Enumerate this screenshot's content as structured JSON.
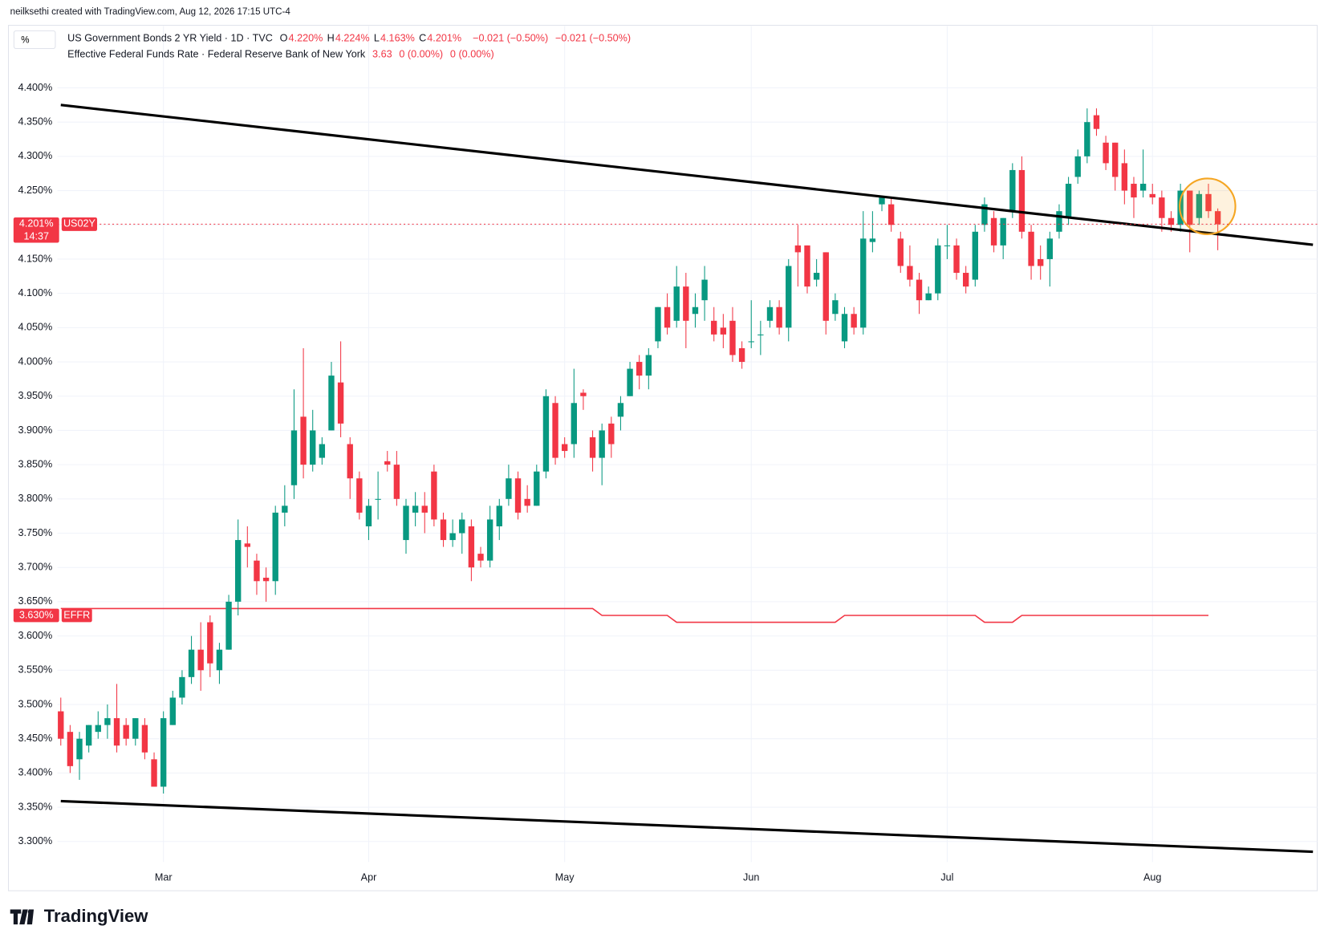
{
  "header": {
    "credit": "neilksethi created with TradingView.com, Aug 12, 2026 17:15 UTC-4"
  },
  "footer": {
    "brand": "TradingView"
  },
  "chart_data": {
    "type": "candlestick",
    "legend": {
      "button": "%",
      "series_name": "US Government Bonds 2 YR Yield · 1D · TVC",
      "ohlc": [
        {
          "key": "O",
          "value": "4.220%"
        },
        {
          "key": "H",
          "value": "4.224%"
        },
        {
          "key": "L",
          "value": "4.163%"
        },
        {
          "key": "C",
          "value": "4.201%"
        }
      ],
      "change": [
        "−0.021 (−0.50%)",
        "−0.021 (−0.50%)"
      ],
      "overlay_name": "Effective Federal Funds Rate · Federal Reserve Bank of New York",
      "overlay_values": [
        "3.63",
        "0 (0.00%)",
        "0 (0.00%)"
      ]
    },
    "categories": [
      null,
      null,
      null,
      null,
      null,
      null,
      null,
      null,
      null,
      null,
      null,
      "Mar",
      null,
      null,
      null,
      null,
      null,
      null,
      null,
      null,
      null,
      null,
      null,
      null,
      null,
      null,
      null,
      null,
      null,
      null,
      null,
      null,
      null,
      "Apr",
      null,
      null,
      null,
      null,
      null,
      null,
      null,
      null,
      null,
      null,
      null,
      null,
      null,
      null,
      null,
      null,
      null,
      null,
      null,
      null,
      "May",
      null,
      null,
      null,
      null,
      null,
      null,
      null,
      null,
      null,
      null,
      null,
      null,
      null,
      null,
      null,
      null,
      null,
      null,
      null,
      "Jun",
      null,
      null,
      null,
      null,
      null,
      null,
      null,
      null,
      null,
      null,
      null,
      null,
      null,
      null,
      null,
      null,
      null,
      null,
      null,
      null,
      "Jul",
      null,
      null,
      null,
      null,
      null,
      null,
      null,
      null,
      null,
      null,
      null,
      null,
      null,
      null,
      null,
      null,
      null,
      null,
      null,
      null,
      null,
      "Aug",
      null,
      null,
      null,
      null,
      null,
      null,
      null
    ],
    "open": [
      3.49,
      3.46,
      3.42,
      3.44,
      3.46,
      3.47,
      3.48,
      3.47,
      3.45,
      3.47,
      3.42,
      3.38,
      3.47,
      3.51,
      3.54,
      3.58,
      3.62,
      3.55,
      3.58,
      3.65,
      3.735,
      3.71,
      3.685,
      3.68,
      3.78,
      3.82,
      3.92,
      3.85,
      3.86,
      3.9,
      3.97,
      3.88,
      3.83,
      3.76,
      3.8,
      3.855,
      3.85,
      3.74,
      3.78,
      3.79,
      3.84,
      3.77,
      3.74,
      3.75,
      3.76,
      3.72,
      3.71,
      3.76,
      3.8,
      3.83,
      3.8,
      3.79,
      3.84,
      3.94,
      3.88,
      3.88,
      3.955,
      3.89,
      3.86,
      3.91,
      3.92,
      3.95,
      4.0,
      3.98,
      4.03,
      4.08,
      4.06,
      4.11,
      4.07,
      4.09,
      4.06,
      4.05,
      4.06,
      4.02,
      4.03,
      4.04,
      4.06,
      4.08,
      4.05,
      4.17,
      4.17,
      4.12,
      4.16,
      4.07,
      4.03,
      4.07,
      4.05,
      4.175,
      4.23,
      4.23,
      4.18,
      4.14,
      4.12,
      4.09,
      4.1,
      4.17,
      4.17,
      4.13,
      4.12,
      4.2,
      4.21,
      4.17,
      4.22,
      4.28,
      4.19,
      4.15,
      4.15,
      4.19,
      4.21,
      4.27,
      4.3,
      4.36,
      4.32,
      4.32,
      4.29,
      4.26,
      4.25,
      4.245,
      4.24,
      4.21,
      4.2,
      4.25,
      4.21,
      4.245,
      4.22
    ],
    "high": [
      3.51,
      3.47,
      3.46,
      3.47,
      3.49,
      3.5,
      3.53,
      3.48,
      3.48,
      3.48,
      3.43,
      3.49,
      3.52,
      3.55,
      3.6,
      3.62,
      3.63,
      3.59,
      3.66,
      3.77,
      3.76,
      3.72,
      3.7,
      3.79,
      3.82,
      3.96,
      4.02,
      3.93,
      3.89,
      4.0,
      4.03,
      3.89,
      3.84,
      3.8,
      3.84,
      3.87,
      3.87,
      3.8,
      3.81,
      3.81,
      3.85,
      3.78,
      3.77,
      3.78,
      3.77,
      3.73,
      3.79,
      3.8,
      3.85,
      3.84,
      3.82,
      3.85,
      3.96,
      3.95,
      3.89,
      3.99,
      3.96,
      3.9,
      3.91,
      3.92,
      3.95,
      4.0,
      4.01,
      4.02,
      4.08,
      4.1,
      4.14,
      4.13,
      4.1,
      4.14,
      4.08,
      4.07,
      4.08,
      4.03,
      4.09,
      4.06,
      4.09,
      4.09,
      4.15,
      4.2,
      4.17,
      4.15,
      4.16,
      4.1,
      4.08,
      4.08,
      4.22,
      4.22,
      4.24,
      4.24,
      4.19,
      4.17,
      4.13,
      4.11,
      4.18,
      4.2,
      4.18,
      4.14,
      4.2,
      4.24,
      4.22,
      4.21,
      4.29,
      4.3,
      4.2,
      4.17,
      4.19,
      4.23,
      4.27,
      4.31,
      4.37,
      4.37,
      4.33,
      4.32,
      4.31,
      4.27,
      4.31,
      4.26,
      4.25,
      4.22,
      4.26,
      4.25,
      4.25,
      4.26,
      4.224
    ],
    "low": [
      3.44,
      3.4,
      3.39,
      3.43,
      3.45,
      3.45,
      3.43,
      3.44,
      3.44,
      3.42,
      3.38,
      3.37,
      3.47,
      3.5,
      3.53,
      3.52,
      3.54,
      3.53,
      3.58,
      3.63,
      3.7,
      3.66,
      3.65,
      3.66,
      3.76,
      3.8,
      3.83,
      3.84,
      3.85,
      3.9,
      3.89,
      3.8,
      3.77,
      3.74,
      3.77,
      3.84,
      3.79,
      3.72,
      3.76,
      3.75,
      3.76,
      3.73,
      3.73,
      3.72,
      3.68,
      3.7,
      3.7,
      3.74,
      3.79,
      3.77,
      3.78,
      3.79,
      3.83,
      3.85,
      3.86,
      3.86,
      3.93,
      3.84,
      3.82,
      3.86,
      3.9,
      3.95,
      3.96,
      3.96,
      4.02,
      4.04,
      4.05,
      4.02,
      4.05,
      4.06,
      4.03,
      4.02,
      4.0,
      3.99,
      4.02,
      4.01,
      4.05,
      4.04,
      4.03,
      4.11,
      4.1,
      4.11,
      4.04,
      4.06,
      4.02,
      4.04,
      4.04,
      4.16,
      4.22,
      4.19,
      4.13,
      4.11,
      4.07,
      4.09,
      4.09,
      4.15,
      4.12,
      4.1,
      4.11,
      4.19,
      4.16,
      4.15,
      4.21,
      4.18,
      4.12,
      4.12,
      4.11,
      4.18,
      4.2,
      4.26,
      4.29,
      4.33,
      4.28,
      4.25,
      4.23,
      4.21,
      4.24,
      4.23,
      4.19,
      4.19,
      4.19,
      4.16,
      4.2,
      4.21,
      4.163
    ],
    "close": [
      3.45,
      3.41,
      3.45,
      3.47,
      3.47,
      3.48,
      3.44,
      3.45,
      3.48,
      3.43,
      3.38,
      3.48,
      3.51,
      3.54,
      3.58,
      3.55,
      3.56,
      3.58,
      3.65,
      3.74,
      3.73,
      3.68,
      3.68,
      3.78,
      3.79,
      3.9,
      3.85,
      3.9,
      3.88,
      3.98,
      3.91,
      3.83,
      3.78,
      3.79,
      3.8,
      3.85,
      3.8,
      3.79,
      3.79,
      3.78,
      3.77,
      3.74,
      3.75,
      3.77,
      3.7,
      3.71,
      3.77,
      3.79,
      3.83,
      3.78,
      3.79,
      3.84,
      3.95,
      3.86,
      3.87,
      3.94,
      3.95,
      3.86,
      3.9,
      3.88,
      3.94,
      3.99,
      3.98,
      4.01,
      4.08,
      4.05,
      4.11,
      4.06,
      4.08,
      4.12,
      4.04,
      4.04,
      4.01,
      4.0,
      4.03,
      4.04,
      4.08,
      4.05,
      4.14,
      4.16,
      4.11,
      4.13,
      4.06,
      4.09,
      4.07,
      4.05,
      4.18,
      4.18,
      4.24,
      4.2,
      4.14,
      4.12,
      4.09,
      4.1,
      4.17,
      4.17,
      4.13,
      4.11,
      4.19,
      4.23,
      4.17,
      4.21,
      4.28,
      4.19,
      4.14,
      4.14,
      4.18,
      4.22,
      4.26,
      4.3,
      4.35,
      4.34,
      4.29,
      4.27,
      4.25,
      4.24,
      4.26,
      4.24,
      4.21,
      4.2,
      4.25,
      4.2,
      4.245,
      4.22,
      4.201
    ],
    "up_color": "#089981",
    "down_color": "#f23645",
    "overlay": {
      "name": "EFFR",
      "color": "#f23645",
      "values": [
        3.64,
        3.64,
        3.64,
        3.64,
        3.64,
        3.64,
        3.64,
        3.64,
        3.64,
        3.64,
        3.64,
        3.64,
        3.64,
        3.64,
        3.64,
        3.64,
        3.64,
        3.64,
        3.64,
        3.64,
        3.64,
        3.64,
        3.64,
        3.64,
        3.64,
        3.64,
        3.64,
        3.64,
        3.64,
        3.64,
        3.64,
        3.64,
        3.64,
        3.64,
        3.64,
        3.64,
        3.64,
        3.64,
        3.64,
        3.64,
        3.64,
        3.64,
        3.64,
        3.64,
        3.64,
        3.64,
        3.64,
        3.64,
        3.64,
        3.64,
        3.64,
        3.64,
        3.64,
        3.64,
        3.64,
        3.64,
        3.64,
        3.64,
        3.63,
        3.63,
        3.63,
        3.63,
        3.63,
        3.63,
        3.63,
        3.63,
        3.62,
        3.62,
        3.62,
        3.62,
        3.62,
        3.62,
        3.62,
        3.62,
        3.62,
        3.62,
        3.62,
        3.62,
        3.62,
        3.62,
        3.62,
        3.62,
        3.62,
        3.62,
        3.63,
        3.63,
        3.63,
        3.63,
        3.63,
        3.63,
        3.63,
        3.63,
        3.63,
        3.63,
        3.63,
        3.63,
        3.63,
        3.63,
        3.63,
        3.62,
        3.62,
        3.62,
        3.62,
        3.63,
        3.63,
        3.63,
        3.63,
        3.63,
        3.63,
        3.63,
        3.63,
        3.63,
        3.63,
        3.63,
        3.63,
        3.63,
        3.63,
        3.63,
        3.63,
        3.63,
        3.63,
        3.63,
        3.63,
        3.63,
        null
      ],
      "tag_value": "3.630%"
    },
    "last_price": {
      "symbol": "US02Y",
      "value": "4.201%",
      "countdown": "14:37"
    },
    "trendlines": [
      {
        "x": [
          0,
          134.2
        ],
        "y": [
          4.375,
          4.171
        ],
        "color": "#000000"
      },
      {
        "x": [
          0,
          134.2
        ],
        "y": [
          3.359,
          3.285
        ],
        "color": "#000000"
      }
    ],
    "highlight": {
      "x": 122.9,
      "y": 4.227,
      "color": "#f5a623"
    },
    "ylim": [
      3.27,
      4.49
    ],
    "yticks": [
      {
        "value": 3.3,
        "label": "3.300%"
      },
      {
        "value": 3.35,
        "label": "3.350%"
      },
      {
        "value": 3.4,
        "label": "3.400%"
      },
      {
        "value": 3.45,
        "label": "3.450%"
      },
      {
        "value": 3.5,
        "label": "3.500%"
      },
      {
        "value": 3.55,
        "label": "3.550%"
      },
      {
        "value": 3.6,
        "label": "3.600%"
      },
      {
        "value": 3.65,
        "label": "3.650%"
      },
      {
        "value": 3.7,
        "label": "3.700%"
      },
      {
        "value": 3.75,
        "label": "3.750%"
      },
      {
        "value": 3.8,
        "label": "3.800%"
      },
      {
        "value": 3.85,
        "label": "3.850%"
      },
      {
        "value": 3.9,
        "label": "3.900%"
      },
      {
        "value": 3.95,
        "label": "3.950%"
      },
      {
        "value": 4.0,
        "label": "4.000%"
      },
      {
        "value": 4.05,
        "label": "4.050%"
      },
      {
        "value": 4.1,
        "label": "4.100%"
      },
      {
        "value": 4.15,
        "label": "4.150%"
      },
      {
        "value": 4.2,
        "label": "4.200%"
      },
      {
        "value": 4.25,
        "label": "4.250%"
      },
      {
        "value": 4.3,
        "label": "4.300%"
      },
      {
        "value": 4.35,
        "label": "4.350%"
      },
      {
        "value": 4.4,
        "label": "4.400%"
      }
    ],
    "grid": true
  }
}
